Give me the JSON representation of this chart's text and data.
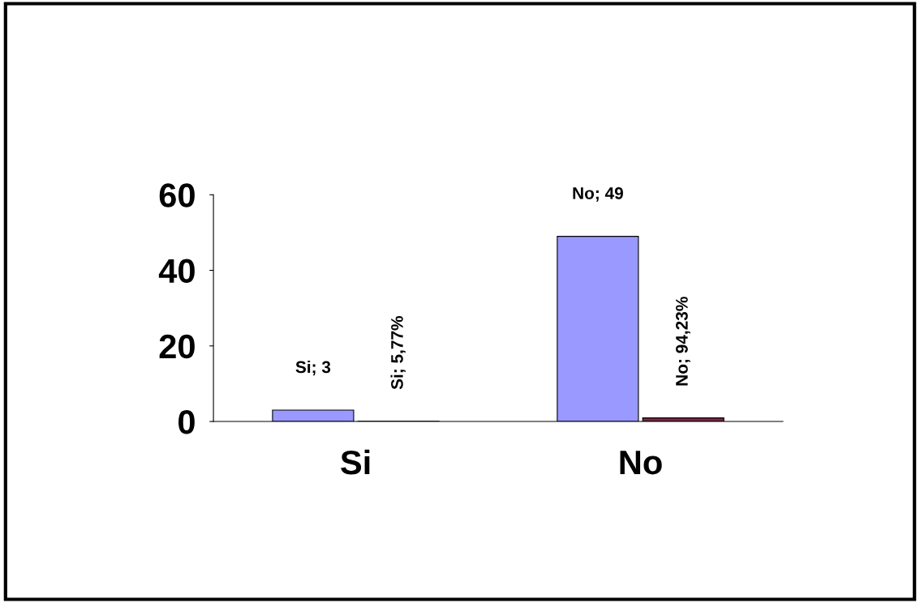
{
  "chart_data": {
    "type": "bar",
    "categories": [
      "Si",
      "No"
    ],
    "series": [
      {
        "color": "#9999ff",
        "values": [
          3,
          49
        ],
        "value_labels": [
          "Si; 3",
          "No; 49"
        ]
      },
      {
        "color": "#7a2848",
        "values": [
          0.0577,
          0.9423
        ],
        "value_labels": [
          "Si; 5,77%",
          "No; 94,23%"
        ]
      }
    ],
    "ylim": [
      0,
      60
    ],
    "yticks": [
      0,
      20,
      40,
      60
    ],
    "grid": false,
    "legend": false
  }
}
